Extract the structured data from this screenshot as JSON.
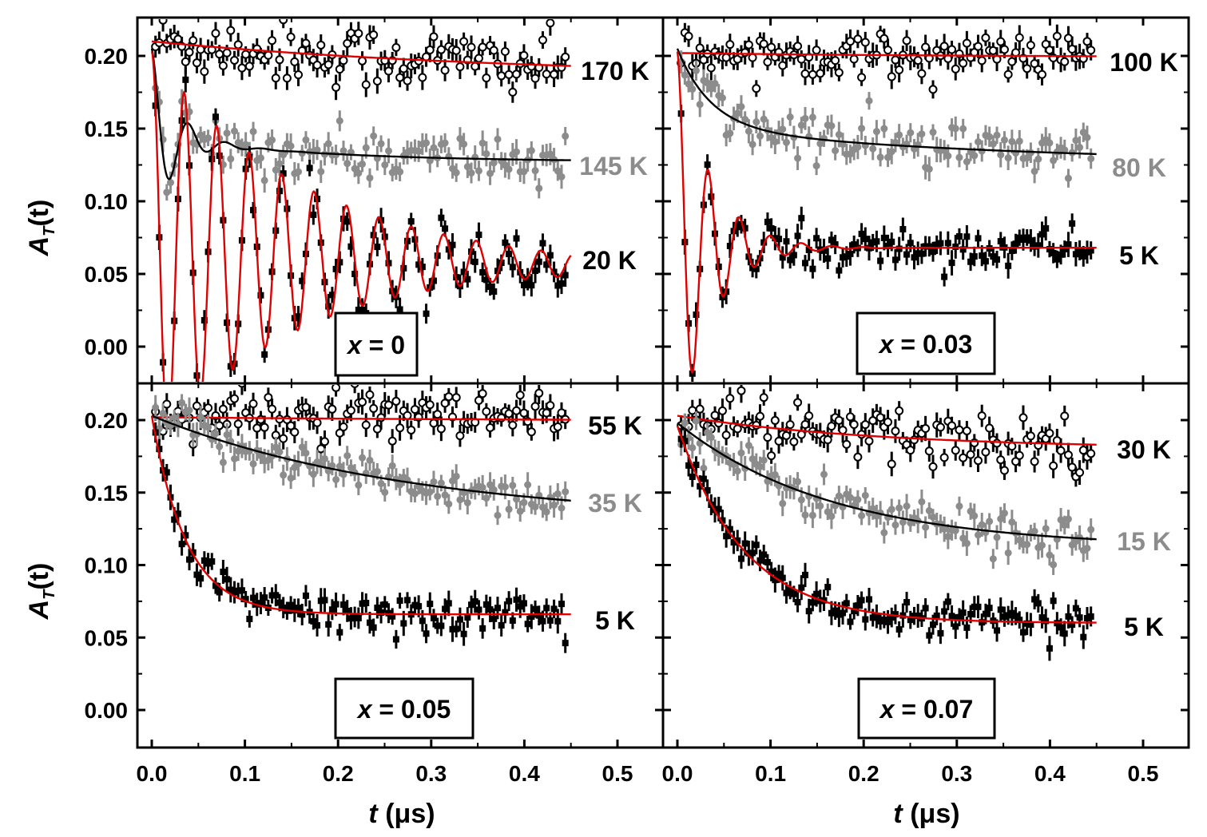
{
  "figure": {
    "y_axis_label": {
      "main": "A",
      "sub": "T",
      "tail": "(t)"
    },
    "x_axis_label": {
      "var": "t",
      "unit": "(μs)"
    },
    "y_ticks": [
      "0.00",
      "0.05",
      "0.10",
      "0.15",
      "0.20"
    ],
    "x_ticks": [
      "0.0",
      "0.1",
      "0.2",
      "0.3",
      "0.4",
      "0.5"
    ],
    "colors": {
      "black": "#000000",
      "gray": "#8c8c8c",
      "red": "#e00000"
    }
  },
  "chart_data": [
    {
      "type": "scatter",
      "title": "x = 0",
      "title_var": "x",
      "title_value": "= 0",
      "xlabel": "t (μs)",
      "ylabel": "A_T(t)",
      "xlim": [
        -0.02,
        0.55
      ],
      "ylim": [
        -0.025,
        0.225
      ],
      "series": [
        {
          "name": "170 K",
          "marker": "open-circle",
          "color": "#000000",
          "fit_color": "#e00000",
          "model": {
            "kind": "relax",
            "a0": 0.21,
            "ainf": 0.185,
            "rate": 2.5,
            "noise": 0.011
          }
        },
        {
          "name": "145 K",
          "marker": "filled-circle",
          "color": "#8c8c8c",
          "fit_color": "#000000",
          "model": {
            "kind": "osc",
            "a0": 0.205,
            "ainf": 0.127,
            "rate": 6.0,
            "amp": 0.06,
            "decay": 40,
            "freq": 25,
            "noise": 0.009,
            "drift": 0.0
          }
        },
        {
          "name": "20 K",
          "marker": "filled-square",
          "color": "#000000",
          "fit_color": "#e00000",
          "model": {
            "kind": "osc",
            "a0": 0.203,
            "ainf": 0.065,
            "rate": 0,
            "amp": 0.138,
            "decay": 6.4,
            "freq": 28.7,
            "noise": 0.008,
            "drift": -0.02
          }
        }
      ]
    },
    {
      "type": "scatter",
      "title": "x = 0.03",
      "title_var": "x",
      "title_value": "= 0.03",
      "xlabel": "t (μs)",
      "ylabel": "A_T(t)",
      "xlim": [
        -0.02,
        0.55
      ],
      "ylim": [
        -0.025,
        0.225
      ],
      "series": [
        {
          "name": "100 K",
          "marker": "open-circle",
          "color": "#000000",
          "fit_color": "#e00000",
          "model": {
            "kind": "relax",
            "a0": 0.202,
            "ainf": 0.199,
            "rate": 3.0,
            "noise": 0.007
          }
        },
        {
          "name": "80 K",
          "marker": "filled-circle",
          "color": "#8c8c8c",
          "fit_color": "#000000",
          "model": {
            "kind": "relax2",
            "a0": 0.205,
            "ainf": 0.126,
            "rate": 28,
            "amp2": 0.025,
            "rate2": 3.0,
            "noise": 0.009
          }
        },
        {
          "name": "5 K",
          "marker": "filled-square",
          "color": "#000000",
          "fit_color": "#e00000",
          "model": {
            "kind": "osc",
            "a0": 0.203,
            "ainf": 0.068,
            "rate": 0,
            "amp": 0.135,
            "decay": 28,
            "freq": 30,
            "noise": 0.007,
            "drift": 0.0
          }
        }
      ]
    },
    {
      "type": "scatter",
      "title": "x = 0.05",
      "title_var": "x",
      "title_value": "= 0.05",
      "xlabel": "t (μs)",
      "ylabel": "A_T(t)",
      "xlim": [
        -0.02,
        0.55
      ],
      "ylim": [
        -0.025,
        0.225
      ],
      "series": [
        {
          "name": "55 K",
          "marker": "open-circle",
          "color": "#000000",
          "fit_color": "#e00000",
          "model": {
            "kind": "relax",
            "a0": 0.202,
            "ainf": 0.199,
            "rate": 2.0,
            "noise": 0.009
          }
        },
        {
          "name": "35 K",
          "marker": "filled-circle",
          "color": "#8c8c8c",
          "fit_color": "#000000",
          "model": {
            "kind": "relax",
            "a0": 0.203,
            "ainf": 0.13,
            "rate": 3.6,
            "noise": 0.007
          }
        },
        {
          "name": "5 K",
          "marker": "filled-square",
          "color": "#000000",
          "fit_color": "#e00000",
          "model": {
            "kind": "relax",
            "a0": 0.203,
            "ainf": 0.066,
            "rate": 27,
            "noise": 0.007
          }
        }
      ]
    },
    {
      "type": "scatter",
      "title": "x = 0.07",
      "title_var": "x",
      "title_value": "= 0.07",
      "xlabel": "t (μs)",
      "ylabel": "A_T(t)",
      "xlim": [
        -0.02,
        0.55
      ],
      "ylim": [
        -0.025,
        0.225
      ],
      "series": [
        {
          "name": "30 K",
          "marker": "open-circle",
          "color": "#000000",
          "fit_color": "#e00000",
          "model": {
            "kind": "relax",
            "a0": 0.203,
            "ainf": 0.18,
            "rate": 4.5,
            "noise": 0.01
          }
        },
        {
          "name": "15 K",
          "marker": "filled-circle",
          "color": "#8c8c8c",
          "fit_color": "#000000",
          "model": {
            "kind": "relax",
            "a0": 0.198,
            "ainf": 0.112,
            "rate": 6.0,
            "noise": 0.008
          }
        },
        {
          "name": "5 K",
          "marker": "filled-square",
          "color": "#000000",
          "fit_color": "#e00000",
          "model": {
            "kind": "relax",
            "a0": 0.196,
            "ainf": 0.06,
            "rate": 14,
            "noise": 0.006
          }
        }
      ]
    }
  ]
}
